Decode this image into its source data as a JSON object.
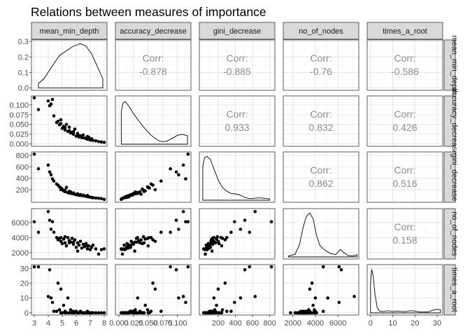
{
  "chart_data": {
    "type": "scatter-matrix",
    "title": "Relations between measures of importance",
    "variables": [
      "mean_min_depth",
      "accuracy_decrease",
      "gini_decrease",
      "no_of_nodes",
      "times_a_root"
    ],
    "strip_top_labels": [
      "mean_min_depth",
      "accuracy_decrease",
      "gini_decrease",
      "no_of_nodes",
      "times_a_root"
    ],
    "strip_right_labels": [
      "mean_min_depth",
      "accuracy_decrease",
      "gini_decrease",
      "no_of_nodes",
      "times_a_root"
    ],
    "corr_label": "Corr:",
    "correlations": [
      {
        "row": 0,
        "col": 1,
        "value": "-0.878"
      },
      {
        "row": 0,
        "col": 2,
        "value": "-0.885"
      },
      {
        "row": 0,
        "col": 3,
        "value": "-0.76"
      },
      {
        "row": 0,
        "col": 4,
        "value": "-0.586"
      },
      {
        "row": 1,
        "col": 2,
        "value": "0.933"
      },
      {
        "row": 1,
        "col": 3,
        "value": "0.832"
      },
      {
        "row": 1,
        "col": 4,
        "value": "0.426"
      },
      {
        "row": 2,
        "col": 3,
        "value": "0.862"
      },
      {
        "row": 2,
        "col": 4,
        "value": "0.516"
      },
      {
        "row": 3,
        "col": 4,
        "value": "0.158"
      }
    ],
    "x_axes": [
      {
        "range": [
          2.8,
          8.2
        ],
        "ticks": [
          3,
          4,
          5,
          6,
          7,
          8
        ],
        "tick_labels": [
          "3",
          "4",
          "5",
          "6",
          "7",
          "8"
        ]
      },
      {
        "range": [
          -0.006,
          0.123
        ],
        "ticks": [
          0,
          0.025,
          0.05,
          0.075,
          0.1
        ],
        "tick_labels": [
          "0.000",
          "0.025",
          "0.050",
          "0.075",
          "0.100"
        ]
      },
      {
        "range": [
          -20,
          860
        ],
        "ticks": [
          200,
          400,
          600,
          800
        ],
        "tick_labels": [
          "200",
          "400",
          "600",
          "800"
        ]
      },
      {
        "range": [
          1150,
          7850
        ],
        "ticks": [
          2000,
          4000,
          6000
        ],
        "tick_labels": [
          "2000",
          "4000",
          "6000"
        ]
      },
      {
        "range": [
          -1.5,
          32.5
        ],
        "ticks": [
          0,
          10,
          20,
          30
        ],
        "tick_labels": [
          "0",
          "10",
          "20",
          "30"
        ]
      }
    ],
    "y_axes": [
      {
        "range": [
          -0.015,
          0.31
        ],
        "ticks": [
          0,
          0.1,
          0.2,
          0.3
        ],
        "tick_labels": [
          "0.0",
          "0.1",
          "0.2",
          "0.3"
        ]
      },
      {
        "range": [
          -0.006,
          0.123
        ],
        "ticks": [
          0,
          0.025,
          0.05,
          0.075,
          0.1
        ],
        "tick_labels": [
          "0.000",
          "0.025",
          "0.050",
          "0.075",
          "0.100"
        ]
      },
      {
        "range": [
          -20,
          860
        ],
        "ticks": [
          200,
          400,
          600,
          800
        ],
        "tick_labels": [
          "200",
          "400",
          "600",
          "800"
        ]
      },
      {
        "range": [
          1150,
          7850
        ],
        "ticks": [
          2000,
          4000,
          6000
        ],
        "tick_labels": [
          "2000",
          "4000",
          "6000"
        ]
      },
      {
        "range": [
          -1.5,
          32.5
        ],
        "ticks": [
          0,
          10,
          20,
          30
        ],
        "tick_labels": [
          "0",
          "10",
          "20",
          "30"
        ]
      }
    ],
    "density_curves": [
      [
        [
          3.3,
          0.03
        ],
        [
          3.7,
          0.06
        ],
        [
          4.2,
          0.13
        ],
        [
          4.8,
          0.21
        ],
        [
          5.3,
          0.24
        ],
        [
          5.8,
          0.27
        ],
        [
          6.3,
          0.285
        ],
        [
          6.7,
          0.27
        ],
        [
          7.1,
          0.22
        ],
        [
          7.5,
          0.14
        ],
        [
          7.8,
          0.08
        ],
        [
          7.9,
          0.06
        ]
      ],
      [
        [
          0.004,
          0.72
        ],
        [
          0.007,
          0.92
        ],
        [
          0.011,
          0.95
        ],
        [
          0.017,
          0.85
        ],
        [
          0.025,
          0.68
        ],
        [
          0.035,
          0.5
        ],
        [
          0.045,
          0.34
        ],
        [
          0.055,
          0.2
        ],
        [
          0.065,
          0.1
        ],
        [
          0.072,
          0.06
        ],
        [
          0.08,
          0.06
        ],
        [
          0.09,
          0.12
        ],
        [
          0.1,
          0.2
        ],
        [
          0.108,
          0.22
        ],
        [
          0.114,
          0.2
        ],
        [
          0.117,
          0.19
        ]
      ],
      [
        [
          20,
          0.75
        ],
        [
          40,
          0.95
        ],
        [
          70,
          0.98
        ],
        [
          110,
          0.9
        ],
        [
          150,
          0.7
        ],
        [
          200,
          0.45
        ],
        [
          250,
          0.28
        ],
        [
          300,
          0.2
        ],
        [
          350,
          0.15
        ],
        [
          400,
          0.14
        ],
        [
          450,
          0.12
        ],
        [
          500,
          0.07
        ],
        [
          550,
          0.04
        ],
        [
          600,
          0.04
        ],
        [
          650,
          0.05
        ],
        [
          700,
          0.05
        ],
        [
          750,
          0.04
        ],
        [
          800,
          0.03
        ]
      ],
      [
        [
          1600,
          0.02
        ],
        [
          2200,
          0.06
        ],
        [
          2600,
          0.28
        ],
        [
          2900,
          0.65
        ],
        [
          3200,
          0.9
        ],
        [
          3500,
          0.98
        ],
        [
          3800,
          0.85
        ],
        [
          4100,
          0.48
        ],
        [
          4400,
          0.25
        ],
        [
          4800,
          0.16
        ],
        [
          5300,
          0.08
        ],
        [
          5800,
          0.05
        ],
        [
          6200,
          0.17
        ],
        [
          6500,
          0.1
        ],
        [
          6900,
          0.03
        ],
        [
          7300,
          0.02
        ],
        [
          7700,
          0.05
        ]
      ],
      [
        [
          0,
          0.65
        ],
        [
          0.5,
          0.97
        ],
        [
          1.2,
          0.82
        ],
        [
          2,
          0.42
        ],
        [
          3,
          0.12
        ],
        [
          4,
          0.04
        ],
        [
          6,
          0.03
        ],
        [
          8,
          0.05
        ],
        [
          10,
          0.03
        ],
        [
          12,
          0.04
        ],
        [
          14,
          0.03
        ],
        [
          16,
          0.03
        ],
        [
          18,
          0.05
        ],
        [
          20,
          0.04
        ],
        [
          22,
          0.02
        ],
        [
          24,
          0.02
        ],
        [
          26,
          0.02
        ],
        [
          28,
          0.06
        ],
        [
          30,
          0.08
        ],
        [
          31.5,
          0.07
        ]
      ]
    ],
    "points": [
      {
        "mean_min_depth": 3.0,
        "accuracy_decrease": 0.118,
        "gini_decrease": 820,
        "no_of_nodes": 6100,
        "times_a_root": 31
      },
      {
        "mean_min_depth": 3.3,
        "accuracy_decrease": 0.088,
        "gini_decrease": 565,
        "no_of_nodes": 4700,
        "times_a_root": 31
      },
      {
        "mean_min_depth": 4.0,
        "accuracy_decrease": 0.11,
        "gini_decrease": 630,
        "no_of_nodes": 7450,
        "times_a_root": 11
      },
      {
        "mean_min_depth": 4.1,
        "accuracy_decrease": 0.098,
        "gini_decrease": 510,
        "no_of_nodes": 6300,
        "times_a_root": 29
      },
      {
        "mean_min_depth": 4.2,
        "accuracy_decrease": 0.102,
        "gini_decrease": 460,
        "no_of_nodes": 5100,
        "times_a_root": 10
      },
      {
        "mean_min_depth": 4.3,
        "accuracy_decrease": 0.114,
        "gini_decrease": 390,
        "no_of_nodes": 6100,
        "times_a_root": 7
      },
      {
        "mean_min_depth": 4.4,
        "accuracy_decrease": 0.072,
        "gini_decrease": 350,
        "no_of_nodes": 4700,
        "times_a_root": 1
      },
      {
        "mean_min_depth": 4.6,
        "accuracy_decrease": 0.055,
        "gini_decrease": 300,
        "no_of_nodes": 4000,
        "times_a_root": 1
      },
      {
        "mean_min_depth": 4.7,
        "accuracy_decrease": 0.058,
        "gini_decrease": 280,
        "no_of_nodes": 3700,
        "times_a_root": 20
      },
      {
        "mean_min_depth": 4.8,
        "accuracy_decrease": 0.049,
        "gini_decrease": 250,
        "no_of_nodes": 3900,
        "times_a_root": 2
      },
      {
        "mean_min_depth": 4.9,
        "accuracy_decrease": 0.062,
        "gini_decrease": 200,
        "no_of_nodes": 3500,
        "times_a_root": 16
      },
      {
        "mean_min_depth": 5.0,
        "accuracy_decrease": 0.04,
        "gini_decrease": 210,
        "no_of_nodes": 3200,
        "times_a_root": 0
      },
      {
        "mean_min_depth": 5.1,
        "accuracy_decrease": 0.045,
        "gini_decrease": 180,
        "no_of_nodes": 3800,
        "times_a_root": 5
      },
      {
        "mean_min_depth": 5.2,
        "accuracy_decrease": 0.036,
        "gini_decrease": 165,
        "no_of_nodes": 3300,
        "times_a_root": 1
      },
      {
        "mean_min_depth": 5.3,
        "accuracy_decrease": 0.05,
        "gini_decrease": 240,
        "no_of_nodes": 2900,
        "times_a_root": 0
      },
      {
        "mean_min_depth": 5.4,
        "accuracy_decrease": 0.032,
        "gini_decrease": 150,
        "no_of_nodes": 4000,
        "times_a_root": 10
      },
      {
        "mean_min_depth": 5.5,
        "accuracy_decrease": 0.034,
        "gini_decrease": 140,
        "no_of_nodes": 3600,
        "times_a_root": 0
      },
      {
        "mean_min_depth": 5.6,
        "accuracy_decrease": 0.028,
        "gini_decrease": 160,
        "no_of_nodes": 3400,
        "times_a_root": 2
      },
      {
        "mean_min_depth": 5.7,
        "accuracy_decrease": 0.03,
        "gini_decrease": 130,
        "no_of_nodes": 3900,
        "times_a_root": 0
      },
      {
        "mean_min_depth": 5.8,
        "accuracy_decrease": 0.025,
        "gini_decrease": 135,
        "no_of_nodes": 3100,
        "times_a_root": 1
      },
      {
        "mean_min_depth": 5.9,
        "accuracy_decrease": 0.038,
        "gini_decrease": 120,
        "no_of_nodes": 3700,
        "times_a_root": 0
      },
      {
        "mean_min_depth": 6.0,
        "accuracy_decrease": 0.02,
        "gini_decrease": 110,
        "no_of_nodes": 2700,
        "times_a_root": 1
      },
      {
        "mean_min_depth": 6.1,
        "accuracy_decrease": 0.024,
        "gini_decrease": 125,
        "no_of_nodes": 3300,
        "times_a_root": 0
      },
      {
        "mean_min_depth": 6.2,
        "accuracy_decrease": 0.018,
        "gini_decrease": 100,
        "no_of_nodes": 3000,
        "times_a_root": 0
      },
      {
        "mean_min_depth": 6.3,
        "accuracy_decrease": 0.021,
        "gini_decrease": 115,
        "no_of_nodes": 3500,
        "times_a_root": 1
      },
      {
        "mean_min_depth": 6.4,
        "accuracy_decrease": 0.016,
        "gini_decrease": 95,
        "no_of_nodes": 2600,
        "times_a_root": 0
      },
      {
        "mean_min_depth": 6.5,
        "accuracy_decrease": 0.023,
        "gini_decrease": 105,
        "no_of_nodes": 3100,
        "times_a_root": 0
      },
      {
        "mean_min_depth": 6.6,
        "accuracy_decrease": 0.015,
        "gini_decrease": 90,
        "no_of_nodes": 2800,
        "times_a_root": 0
      },
      {
        "mean_min_depth": 6.7,
        "accuracy_decrease": 0.014,
        "gini_decrease": 85,
        "no_of_nodes": 3200,
        "times_a_root": 0
      },
      {
        "mean_min_depth": 6.8,
        "accuracy_decrease": 0.012,
        "gini_decrease": 80,
        "no_of_nodes": 2500,
        "times_a_root": 0
      },
      {
        "mean_min_depth": 6.9,
        "accuracy_decrease": 0.017,
        "gini_decrease": 75,
        "no_of_nodes": 2900,
        "times_a_root": 0
      },
      {
        "mean_min_depth": 7.0,
        "accuracy_decrease": 0.01,
        "gini_decrease": 70,
        "no_of_nodes": 2400,
        "times_a_root": 0
      },
      {
        "mean_min_depth": 7.1,
        "accuracy_decrease": 0.013,
        "gini_decrease": 65,
        "no_of_nodes": 2700,
        "times_a_root": 0
      },
      {
        "mean_min_depth": 7.2,
        "accuracy_decrease": 0.009,
        "gini_decrease": 60,
        "no_of_nodes": 3000,
        "times_a_root": 0
      },
      {
        "mean_min_depth": 7.4,
        "accuracy_decrease": 0.008,
        "gini_decrease": 55,
        "no_of_nodes": 2500,
        "times_a_root": 0
      },
      {
        "mean_min_depth": 7.6,
        "accuracy_decrease": 0.006,
        "gini_decrease": 50,
        "no_of_nodes": 1800,
        "times_a_root": 0
      },
      {
        "mean_min_depth": 7.8,
        "accuracy_decrease": 0.005,
        "gini_decrease": 45,
        "no_of_nodes": 2400,
        "times_a_root": 0
      },
      {
        "mean_min_depth": 8.0,
        "accuracy_decrease": 0.004,
        "gini_decrease": 30,
        "no_of_nodes": 2500,
        "times_a_root": 0
      },
      {
        "mean_min_depth": 5.2,
        "accuracy_decrease": 0.042,
        "gini_decrease": 190,
        "no_of_nodes": 4100,
        "times_a_root": 0
      },
      {
        "mean_min_depth": 5.8,
        "accuracy_decrease": 0.031,
        "gini_decrease": 145,
        "no_of_nodes": 3400,
        "times_a_root": 0
      },
      {
        "mean_min_depth": 6.1,
        "accuracy_decrease": 0.027,
        "gini_decrease": 128,
        "no_of_nodes": 2200,
        "times_a_root": 0
      },
      {
        "mean_min_depth": 6.8,
        "accuracy_decrease": 0.019,
        "gini_decrease": 98,
        "no_of_nodes": 2900,
        "times_a_root": 1
      },
      {
        "mean_min_depth": 4.9,
        "accuracy_decrease": 0.052,
        "gini_decrease": 230,
        "no_of_nodes": 4000,
        "times_a_root": 0
      },
      {
        "mean_min_depth": 5.5,
        "accuracy_decrease": 0.043,
        "gini_decrease": 170,
        "no_of_nodes": 3300,
        "times_a_root": 0
      }
    ]
  }
}
